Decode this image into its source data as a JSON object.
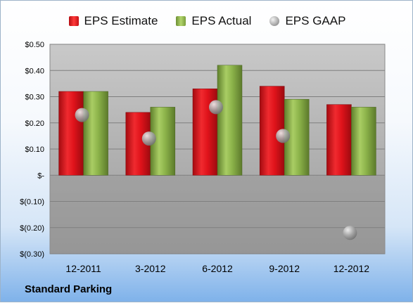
{
  "company": "Standard Parking",
  "legend": {
    "estimate": "EPS Estimate",
    "actual": "EPS Actual",
    "gaap": "EPS GAAP"
  },
  "colors": {
    "estimate": "#e0131b",
    "actual": "#8cb34a",
    "gaap": "#a9a9a9"
  },
  "chart_data": {
    "type": "bar",
    "categories": [
      "12-2011",
      "3-2012",
      "6-2012",
      "9-2012",
      "12-2012"
    ],
    "series": [
      {
        "name": "EPS Estimate",
        "values": [
          0.32,
          0.24,
          0.33,
          0.34,
          0.27
        ]
      },
      {
        "name": "EPS Actual",
        "values": [
          0.32,
          0.26,
          0.42,
          0.29,
          0.26
        ]
      },
      {
        "name": "EPS GAAP",
        "values": [
          0.23,
          0.14,
          0.26,
          0.15,
          -0.22
        ]
      }
    ],
    "ylim": [
      -0.3,
      0.5
    ],
    "yticks": [
      0.5,
      0.4,
      0.3,
      0.2,
      0.1,
      0,
      -0.1,
      -0.2,
      -0.3
    ],
    "ytick_labels": [
      "$0.50",
      "$0.40",
      "$0.30",
      "$0.20",
      "$0.10",
      "$-",
      "$(0.10)",
      "$(0.20)",
      "$(0.30)"
    ],
    "grid": true,
    "legend_position": "top"
  }
}
